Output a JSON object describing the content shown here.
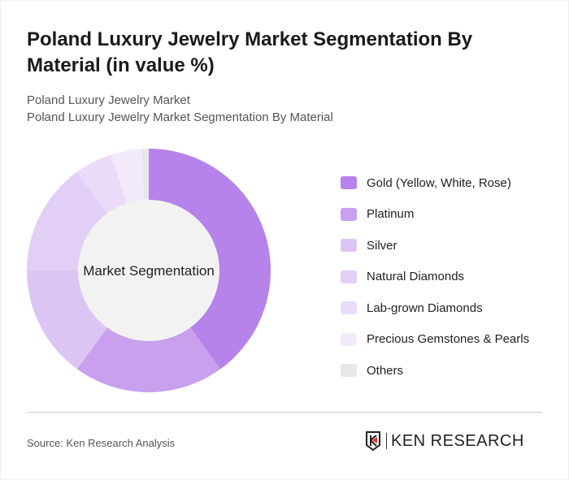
{
  "title": "Poland Luxury Jewelry Market Segmentation By Material (in value %)",
  "subtitle1": "Poland Luxury Jewelry Market",
  "subtitle2": "Poland Luxury Jewelry Market Segmentation By Material",
  "source": "Source: Ken Research Analysis",
  "logo_text": "KEN RESEARCH",
  "chart_data": {
    "type": "pie",
    "variant": "donut",
    "center_label": "Market Segmentation",
    "legend_position": "right",
    "categories": [
      "Gold (Yellow, White, Rose)",
      "Platinum",
      "Silver",
      "Natural Diamonds",
      "Lab-grown Diamonds",
      "Precious Gemstones & Pearls",
      "Others"
    ],
    "values": [
      40,
      20,
      15,
      15,
      5,
      4,
      1
    ],
    "colors": [
      "#b583ea",
      "#c8a0ee",
      "#dcc5f5",
      "#e2cff6",
      "#eadbf8",
      "#f3ebfb",
      "#e8e8e8"
    ]
  }
}
